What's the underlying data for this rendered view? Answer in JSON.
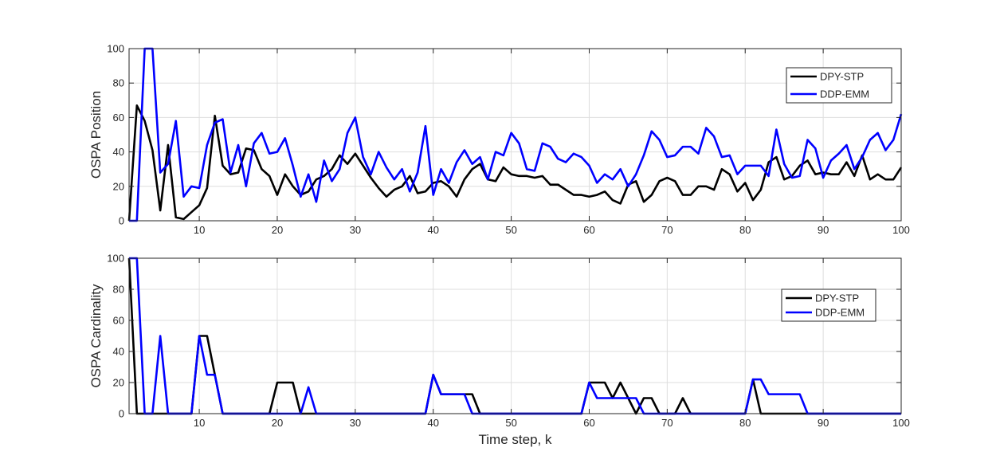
{
  "chart_data": [
    {
      "type": "line",
      "xlabel": "",
      "ylabel": "OSPA Position",
      "xlim": [
        1,
        100
      ],
      "ylim": [
        0,
        100
      ],
      "xticks": [
        10,
        20,
        30,
        40,
        50,
        60,
        70,
        80,
        90,
        100
      ],
      "yticks": [
        0,
        20,
        40,
        60,
        80,
        100
      ],
      "grid": true,
      "legend_position": "top-right",
      "x": [
        1,
        2,
        3,
        4,
        5,
        6,
        7,
        8,
        9,
        10,
        11,
        12,
        13,
        14,
        15,
        16,
        17,
        18,
        19,
        20,
        21,
        22,
        23,
        24,
        25,
        26,
        27,
        28,
        29,
        30,
        31,
        32,
        33,
        34,
        35,
        36,
        37,
        38,
        39,
        40,
        41,
        42,
        43,
        44,
        45,
        46,
        47,
        48,
        49,
        50,
        51,
        52,
        53,
        54,
        55,
        56,
        57,
        58,
        59,
        60,
        61,
        62,
        63,
        64,
        65,
        66,
        67,
        68,
        69,
        70,
        71,
        72,
        73,
        74,
        75,
        76,
        77,
        78,
        79,
        80,
        81,
        82,
        83,
        84,
        85,
        86,
        87,
        88,
        89,
        90,
        91,
        92,
        93,
        94,
        95,
        96,
        97,
        98,
        99,
        100
      ],
      "series": [
        {
          "name": "DPY-STP",
          "color": "#000000",
          "values": [
            0,
            67,
            58,
            41,
            6,
            44,
            2,
            1,
            5,
            9,
            19,
            61,
            32,
            27,
            28,
            42,
            41,
            30,
            26,
            15,
            27,
            20,
            15,
            17,
            24,
            26,
            30,
            38,
            33,
            39,
            32,
            25,
            19,
            14,
            18,
            20,
            26,
            16,
            17,
            22,
            23,
            20,
            14,
            24,
            30,
            33,
            24,
            23,
            31,
            27,
            26,
            26,
            25,
            26,
            21,
            21,
            18,
            15,
            15,
            14,
            15,
            17,
            12,
            10,
            21,
            23,
            11,
            15,
            23,
            25,
            23,
            15,
            15,
            20,
            20,
            18,
            30,
            27,
            17,
            22,
            12,
            18,
            34,
            37,
            24,
            26,
            32,
            35,
            27,
            28,
            27,
            27,
            34,
            26,
            38,
            24,
            27,
            24,
            24,
            31
          ]
        },
        {
          "name": "DDP-EMM",
          "color": "#0000FF",
          "values": [
            0,
            0,
            100,
            100,
            28,
            33,
            58,
            14,
            20,
            19,
            44,
            57,
            59,
            28,
            44,
            20,
            45,
            51,
            39,
            40,
            48,
            32,
            14,
            27,
            11,
            35,
            23,
            30,
            51,
            60,
            37,
            27,
            40,
            31,
            24,
            30,
            17,
            28,
            55,
            15,
            30,
            22,
            34,
            41,
            33,
            37,
            24,
            40,
            38,
            51,
            45,
            30,
            29,
            45,
            43,
            36,
            34,
            39,
            37,
            32,
            22,
            27,
            24,
            30,
            20,
            27,
            38,
            52,
            47,
            37,
            38,
            43,
            43,
            39,
            54,
            49,
            37,
            38,
            27,
            32,
            32,
            32,
            26,
            53,
            33,
            25,
            26,
            47,
            42,
            25,
            35,
            39,
            44,
            30,
            37,
            47,
            51,
            41,
            47,
            62
          ]
        }
      ]
    },
    {
      "type": "line",
      "xlabel": "Time step, k",
      "ylabel": "OSPA Cardinality",
      "xlim": [
        1,
        100
      ],
      "ylim": [
        0,
        100
      ],
      "xticks": [
        10,
        20,
        30,
        40,
        50,
        60,
        70,
        80,
        90,
        100
      ],
      "yticks": [
        0,
        20,
        40,
        60,
        80,
        100
      ],
      "grid": true,
      "legend_position": "right",
      "x": [
        1,
        2,
        3,
        4,
        5,
        6,
        7,
        8,
        9,
        10,
        11,
        12,
        13,
        14,
        15,
        16,
        17,
        18,
        19,
        20,
        21,
        22,
        23,
        24,
        25,
        26,
        27,
        28,
        29,
        30,
        31,
        32,
        33,
        34,
        35,
        36,
        37,
        38,
        39,
        40,
        41,
        42,
        43,
        44,
        45,
        46,
        47,
        48,
        49,
        50,
        51,
        52,
        53,
        54,
        55,
        56,
        57,
        58,
        59,
        60,
        61,
        62,
        63,
        64,
        65,
        66,
        67,
        68,
        69,
        70,
        71,
        72,
        73,
        74,
        75,
        76,
        77,
        78,
        79,
        80,
        81,
        82,
        83,
        84,
        85,
        86,
        87,
        88,
        89,
        90,
        91,
        92,
        93,
        94,
        95,
        96,
        97,
        98,
        99,
        100
      ],
      "series": [
        {
          "name": "DPY-STP",
          "color": "#000000",
          "values": [
            100,
            0,
            0,
            0,
            0,
            0,
            0,
            0,
            0,
            50,
            50,
            25,
            0,
            0,
            0,
            0,
            0,
            0,
            0,
            20,
            20,
            20,
            0,
            0,
            0,
            0,
            0,
            0,
            0,
            0,
            0,
            0,
            0,
            0,
            0,
            0,
            0,
            0,
            0,
            25,
            12.5,
            12.5,
            12.5,
            12.5,
            12.5,
            0,
            0,
            0,
            0,
            0,
            0,
            0,
            0,
            0,
            0,
            0,
            0,
            0,
            0,
            20,
            20,
            20,
            10,
            20,
            10,
            0,
            10,
            10,
            0,
            0,
            0,
            10,
            0,
            0,
            0,
            0,
            0,
            0,
            0,
            0,
            22,
            0,
            0,
            0,
            0,
            0,
            0,
            0,
            0,
            0,
            0,
            0,
            0,
            0,
            0,
            0,
            0,
            0,
            0,
            0
          ]
        },
        {
          "name": "DDP-EMM",
          "color": "#0000FF",
          "values": [
            100,
            100,
            0,
            0,
            50,
            0,
            0,
            0,
            0,
            50,
            25,
            25,
            0,
            0,
            0,
            0,
            0,
            0,
            0,
            0,
            0,
            0,
            0,
            17,
            0,
            0,
            0,
            0,
            0,
            0,
            0,
            0,
            0,
            0,
            0,
            0,
            0,
            0,
            0,
            25,
            12.5,
            12.5,
            12.5,
            12.5,
            0,
            0,
            0,
            0,
            0,
            0,
            0,
            0,
            0,
            0,
            0,
            0,
            0,
            0,
            0,
            20,
            10,
            10,
            10,
            10,
            10,
            10,
            0,
            0,
            0,
            0,
            0,
            0,
            0,
            0,
            0,
            0,
            0,
            0,
            0,
            0,
            22,
            22,
            12.5,
            12.5,
            12.5,
            12.5,
            12.5,
            0,
            0,
            0,
            0,
            0,
            0,
            0,
            0,
            0,
            0,
            0,
            0,
            0
          ]
        }
      ]
    }
  ]
}
